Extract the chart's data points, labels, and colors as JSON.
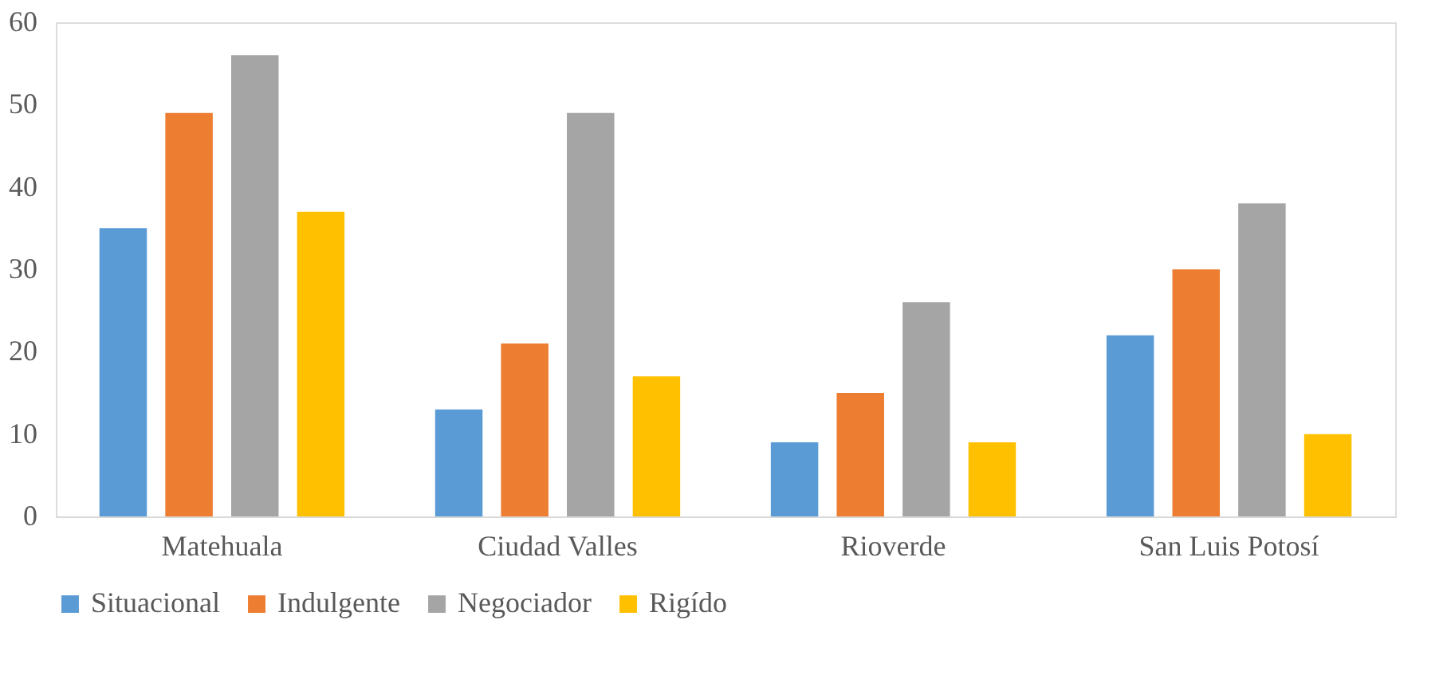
{
  "chart_data": {
    "type": "bar",
    "categories": [
      "Matehuala",
      "Ciudad Valles",
      "Rioverde",
      "San Luis Potosí"
    ],
    "series": [
      {
        "name": "Situacional",
        "color": "#5b9bd5",
        "values": [
          35,
          13,
          9,
          22
        ]
      },
      {
        "name": "Indulgente",
        "color": "#ed7d31",
        "values": [
          49,
          21,
          15,
          30
        ]
      },
      {
        "name": "Negociador",
        "color": "#a5a5a5",
        "values": [
          56,
          49,
          26,
          38
        ]
      },
      {
        "name": "Rigído",
        "color": "#ffc000",
        "values": [
          37,
          17,
          9,
          10
        ]
      }
    ],
    "ylim": [
      0,
      60
    ],
    "yticks": [
      0,
      10,
      20,
      30,
      40,
      50,
      60
    ],
    "grid": false,
    "legend": "bottom"
  }
}
